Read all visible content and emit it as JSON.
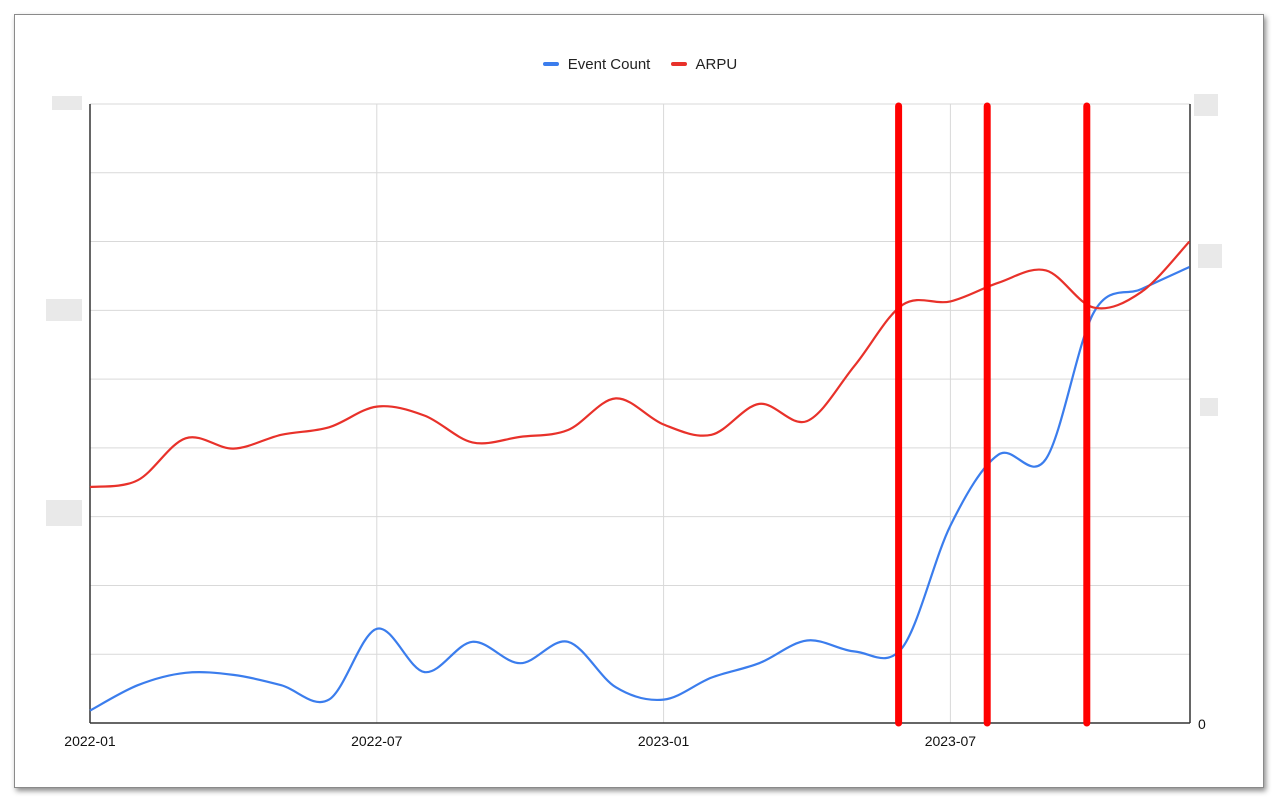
{
  "chart_data": {
    "type": "line",
    "legend_position": "top",
    "grid": true,
    "x_ticks": [
      "2022-01",
      "2022-07",
      "2023-01",
      "2023-07"
    ],
    "xlim": [
      "2022-01",
      "2023-12"
    ],
    "right_axis_tick": "0",
    "series": [
      {
        "name": "Event Count",
        "color": "#3b7ded",
        "points": [
          [
            "2022-01",
            1.8
          ],
          [
            "2022-02",
            5.5
          ],
          [
            "2022-03",
            7.3
          ],
          [
            "2022-04",
            7.0
          ],
          [
            "2022-05",
            5.5
          ],
          [
            "2022-06",
            3.4
          ],
          [
            "2022-07",
            13.7
          ],
          [
            "2022-08",
            7.4
          ],
          [
            "2022-09",
            11.8
          ],
          [
            "2022-10",
            8.7
          ],
          [
            "2022-11",
            11.8
          ],
          [
            "2022-12",
            5.2
          ],
          [
            "2023-01",
            3.4
          ],
          [
            "2023-02",
            6.6
          ],
          [
            "2023-03",
            8.7
          ],
          [
            "2023-04",
            12.0
          ],
          [
            "2023-05",
            10.4
          ],
          [
            "2023-06",
            11.0
          ],
          [
            "2023-07",
            28.7
          ],
          [
            "2023-08",
            39.0
          ],
          [
            "2023-09",
            38.4
          ],
          [
            "2023-10",
            59.7
          ],
          [
            "2023-11",
            63.1
          ],
          [
            "2023-12",
            66.3
          ]
        ]
      },
      {
        "name": "ARPU",
        "color": "#e8312a",
        "points": [
          [
            "2022-01",
            34.3
          ],
          [
            "2022-02",
            35.3
          ],
          [
            "2022-03",
            41.4
          ],
          [
            "2022-04",
            39.9
          ],
          [
            "2022-05",
            41.9
          ],
          [
            "2022-06",
            43.0
          ],
          [
            "2022-07",
            46.0
          ],
          [
            "2022-08",
            44.7
          ],
          [
            "2022-09",
            40.8
          ],
          [
            "2022-10",
            41.6
          ],
          [
            "2022-11",
            42.6
          ],
          [
            "2022-12",
            47.2
          ],
          [
            "2023-01",
            43.4
          ],
          [
            "2023-02",
            41.9
          ],
          [
            "2023-03",
            46.4
          ],
          [
            "2023-04",
            43.9
          ],
          [
            "2023-05",
            52.0
          ],
          [
            "2023-06",
            60.8
          ],
          [
            "2023-07",
            61.3
          ],
          [
            "2023-08",
            64.0
          ],
          [
            "2023-09",
            65.8
          ],
          [
            "2023-10",
            60.4
          ],
          [
            "2023-11",
            62.7
          ],
          [
            "2023-12",
            70.0
          ]
        ]
      }
    ],
    "markers": {
      "color": "#ff0000",
      "dates": [
        "2023-06",
        "2023-08",
        "2023-10"
      ]
    }
  }
}
